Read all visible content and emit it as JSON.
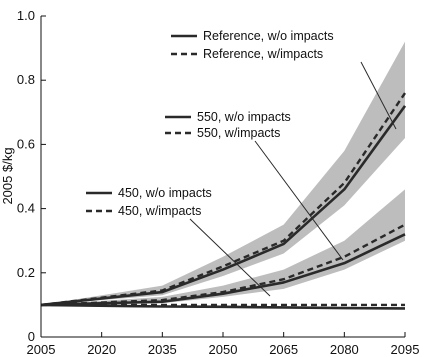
{
  "chart_data": {
    "type": "line",
    "ylabel": "2005 $/kg",
    "x_ticks": [
      "2005",
      "2020",
      "2035",
      "2050",
      "2065",
      "2080",
      "2095"
    ],
    "y_ticks": [
      "0",
      "0.2",
      "0.4",
      "0.6",
      "0.8",
      "1.0"
    ],
    "xlim": [
      2005,
      2095
    ],
    "ylim": [
      0,
      1.0
    ],
    "grid": false,
    "x": [
      2005,
      2035,
      2050,
      2065,
      2080,
      2095
    ],
    "series": [
      {
        "name": "Reference, w/o impacts",
        "style": "solid",
        "values": [
          0.1,
          0.14,
          0.21,
          0.29,
          0.46,
          0.72
        ]
      },
      {
        "name": "Reference, w/impacts",
        "style": "dashed",
        "values": [
          0.1,
          0.145,
          0.22,
          0.3,
          0.48,
          0.76
        ]
      },
      {
        "name": "550, w/o impacts",
        "style": "solid",
        "values": [
          0.1,
          0.11,
          0.135,
          0.17,
          0.23,
          0.32
        ]
      },
      {
        "name": "550, w/impacts",
        "style": "dashed",
        "values": [
          0.1,
          0.115,
          0.14,
          0.18,
          0.25,
          0.35
        ]
      },
      {
        "name": "450, w/o impacts",
        "style": "solid",
        "values": [
          0.1,
          0.095,
          0.094,
          0.092,
          0.09,
          0.089
        ]
      },
      {
        "name": "450, w/impacts",
        "style": "dashed",
        "values": [
          0.1,
          0.1,
          0.1,
          0.1,
          0.1,
          0.1
        ]
      }
    ],
    "bands": [
      {
        "series": "Reference",
        "low": [
          0.1,
          0.13,
          0.19,
          0.26,
          0.41,
          0.62
        ],
        "high": [
          0.1,
          0.16,
          0.25,
          0.35,
          0.58,
          0.92
        ]
      },
      {
        "series": "550",
        "low": [
          0.1,
          0.105,
          0.125,
          0.15,
          0.21,
          0.3
        ],
        "high": [
          0.1,
          0.125,
          0.16,
          0.21,
          0.3,
          0.46
        ]
      }
    ],
    "legend_groups": [
      {
        "solid": "Reference, w/o impacts",
        "dashed": "Reference, w/impacts"
      },
      {
        "solid": "550, w/o impacts",
        "dashed": "550, w/impacts"
      },
      {
        "solid": "450, w/o impacts",
        "dashed": "450, w/impacts"
      }
    ]
  }
}
